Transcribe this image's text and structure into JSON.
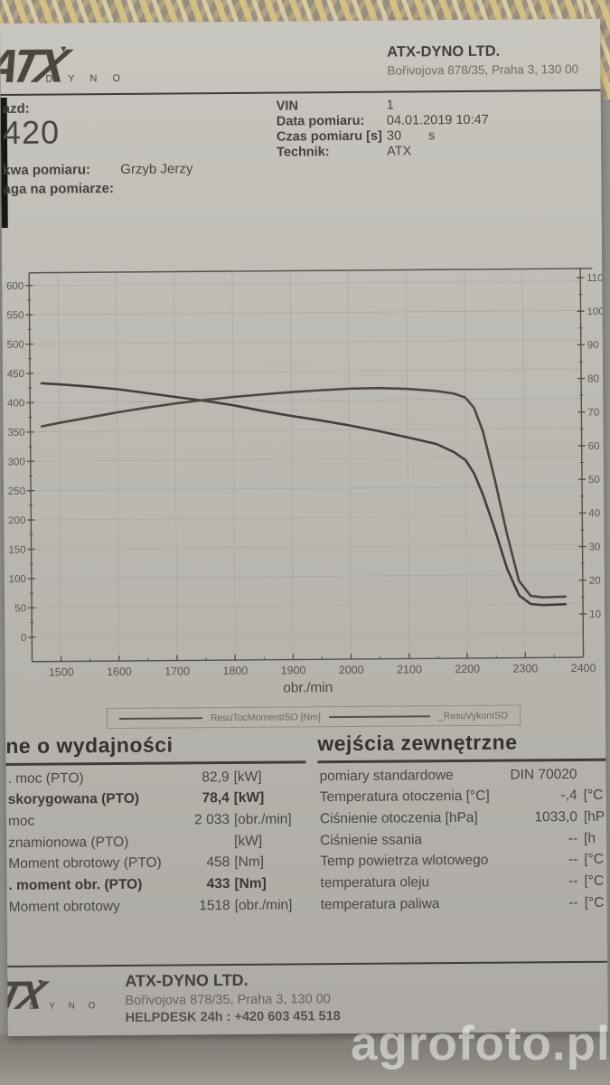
{
  "header": {
    "logo_main": "ATX",
    "logo_sub": "D Y N O",
    "company": "ATX-DYNO LTD.",
    "address": "Bořivojova 878/35, Praha 3, 130 00"
  },
  "info": {
    "left": {
      "vehicle_label": "azd:",
      "vehicle_number": "420",
      "measure_name_label": "kwa pomiaru:",
      "measure_name": "Grzyb Jerzy",
      "note_label": "aga na pomiarze:"
    },
    "right": [
      {
        "label": "VIN",
        "value": "1"
      },
      {
        "label": "Data pomiaru:",
        "value": "04.01.2019 10:47"
      },
      {
        "label": "Czas pomiaru [s]",
        "value": "30",
        "suffix": "s"
      },
      {
        "label": "Technik:",
        "value": "ATX"
      }
    ]
  },
  "chart_data": {
    "type": "line",
    "xlabel": "obr./min",
    "xlim": [
      1450,
      2400
    ],
    "x_ticks": [
      1500,
      1600,
      1700,
      1800,
      1900,
      2000,
      2100,
      2200,
      2300,
      2400
    ],
    "left_axis": {
      "lim": [
        0,
        600
      ],
      "ticks": [
        0,
        50,
        100,
        150,
        200,
        250,
        300,
        350,
        400,
        450,
        500,
        550,
        600
      ]
    },
    "right_axis": {
      "lim": [
        10,
        110
      ],
      "ticks": [
        10,
        20,
        30,
        40,
        50,
        60,
        70,
        80,
        90,
        100,
        110
      ]
    },
    "grid": true,
    "legend_position": "bottom",
    "series": [
      {
        "name": "ResuTocMomentISO [Nm]",
        "axis": "left",
        "x": [
          1470,
          1500,
          1550,
          1600,
          1650,
          1700,
          1750,
          1800,
          1850,
          1900,
          1950,
          2000,
          2050,
          2100,
          2150,
          2180,
          2200,
          2215,
          2230,
          2250,
          2270,
          2290,
          2310,
          2330,
          2370
        ],
        "values": [
          433,
          431,
          427,
          422,
          415,
          408,
          401,
          393,
          383,
          374,
          366,
          357,
          347,
          336,
          324,
          310,
          296,
          272,
          235,
          175,
          110,
          65,
          50,
          48,
          49
        ]
      },
      {
        "name": "_ResuVykonISO",
        "axis": "right",
        "x": [
          1470,
          1500,
          1550,
          1600,
          1650,
          1700,
          1750,
          1800,
          1850,
          1900,
          1950,
          2000,
          2050,
          2100,
          2150,
          2180,
          2200,
          2215,
          2230,
          2250,
          2270,
          2290,
          2310,
          2330,
          2370
        ],
        "values": [
          67,
          68,
          69.5,
          71,
          72.3,
          73.5,
          74.5,
          75.3,
          76,
          76.6,
          77.1,
          77.5,
          77.6,
          77.3,
          76.6,
          75.8,
          74.6,
          71.5,
          64.5,
          50,
          34,
          20,
          15.5,
          15,
          15.2
        ]
      }
    ]
  },
  "performance_table": {
    "title": "ne o wydajności",
    "rows": [
      {
        "label": ". moc (PTO)",
        "value": "82,9",
        "unit": "[kW]",
        "bold": false
      },
      {
        "label": "skorygowana (PTO)",
        "value": "78,4",
        "unit": "[kW]",
        "bold": true
      },
      {
        "label": "moc",
        "value": "2 033",
        "unit": "[obr./min]",
        "bold": false
      },
      {
        "label": "znamionowa (PTO)",
        "value": "",
        "unit": "[kW]",
        "bold": false
      },
      {
        "label": "Moment obrotowy (PTO)",
        "value": "458",
        "unit": "[Nm]",
        "bold": false
      },
      {
        "label": ". moment obr. (PTO)",
        "value": "433",
        "unit": "[Nm]",
        "bold": true
      },
      {
        "label": "Moment obrotowy",
        "value": "1518",
        "unit": "[obr./min]",
        "bold": false
      }
    ]
  },
  "external_table": {
    "title": "wejścia zewnętrzne",
    "rows": [
      {
        "label": "pomiary standardowe",
        "value": "DIN 70020",
        "unit": "",
        "bold": false
      },
      {
        "label": "Temperatura otoczenia [°C]",
        "value": "-,4",
        "unit": "[°C",
        "bold": false
      },
      {
        "label": "Ciśnienie otoczenia [hPa]",
        "value": "1033,0",
        "unit": "[hP",
        "bold": false
      },
      {
        "label": "Ciśnienie ssania",
        "value": "--",
        "unit": "[h",
        "bold": false
      },
      {
        "label": "Temp powietrza wlotowego",
        "value": "--",
        "unit": "[°C",
        "bold": false
      },
      {
        "label": "temperatura oleju",
        "value": "--",
        "unit": "[°C",
        "bold": false
      },
      {
        "label": "temperatura paliwa",
        "value": "--",
        "unit": "[°C",
        "bold": false
      }
    ]
  },
  "footer": {
    "company": "ATX-DYNO LTD.",
    "address": "Bořivojova 878/35, Praha 3, 130 00",
    "helpdesk": "HELPDESK 24h : +420 603 451 518"
  },
  "watermark": "agrofoto.pl"
}
